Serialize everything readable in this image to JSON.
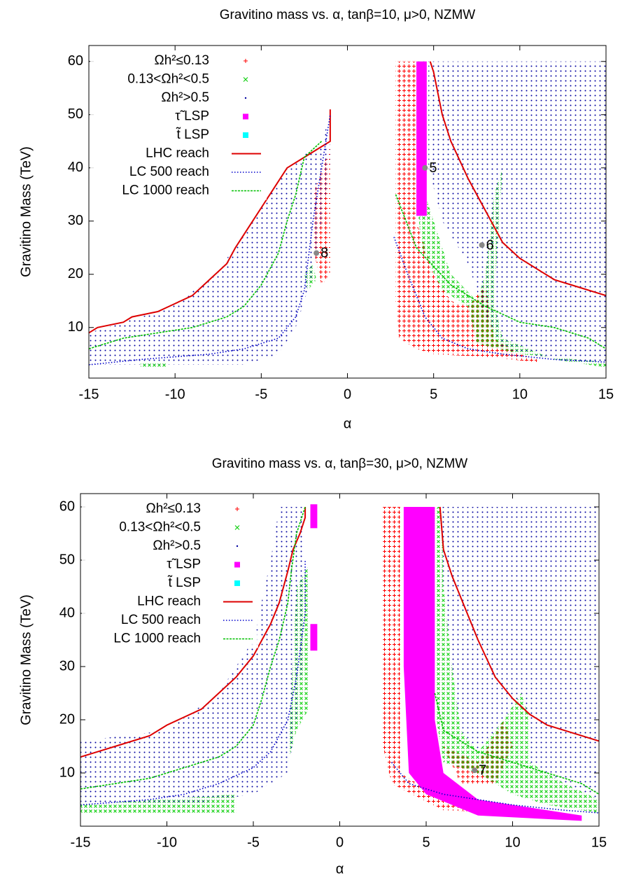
{
  "chart_data": [
    {
      "type": "scatter",
      "title": "Gravitino mass vs. α, tanβ=10, μ>0, NZMW",
      "x_label": "α",
      "y_label": "Gravitino Mass (TeV)",
      "xlim": [
        -15,
        15
      ],
      "ylim": [
        0.5,
        63
      ],
      "xticks": [
        -15,
        -10,
        -5,
        0,
        5,
        10,
        15
      ],
      "yticks": [
        10,
        20,
        30,
        40,
        50,
        60
      ],
      "legend": "upper left",
      "series": [
        {
          "name": "Ωh²≤0.13",
          "color": "#ff0000",
          "marker": "plus",
          "regions": [
            {
              "x": [
                -2,
                -1,
                -1,
                -1.5,
                -2
              ],
              "y": [
                35,
                44,
                20,
                18,
                25
              ]
            },
            {
              "x": [
                2.8,
                4,
                4,
                5,
                6,
                7,
                8,
                8.5,
                10,
                11,
                11,
                8,
                5,
                4,
                3,
                2.8
              ],
              "y": [
                60,
                60,
                30,
                20,
                15,
                14,
                18,
                8,
                5,
                4,
                3.5,
                4.5,
                5,
                6,
                8,
                15
              ]
            }
          ]
        },
        {
          "name": "0.13<Ωh²<0.5",
          "color": "#00cc00",
          "marker": "cross",
          "regions": [
            {
              "x": [
                -2.5,
                -2,
                -1.8,
                -2.3
              ],
              "y": [
                20,
                22,
                19,
                17
              ]
            },
            {
              "x": [
                -12,
                -10.5,
                -10.5,
                -12
              ],
              "y": [
                3.5,
                3.5,
                2.5,
                2.5
              ]
            },
            {
              "x": [
                4,
                4.6,
                4.5,
                5,
                6,
                7.5,
                8,
                8.5,
                9,
                8.8,
                8.5,
                9,
                12,
                15,
                15,
                10,
                7.5,
                7,
                5.5,
                4.3,
                4
              ],
              "y": [
                60,
                60,
                35,
                30,
                20,
                15,
                20,
                35,
                40,
                30,
                15,
                8,
                4,
                2.5,
                3.5,
                5,
                7,
                14,
                17,
                25,
                35
              ]
            }
          ]
        },
        {
          "name": "Ωh²>0.5",
          "color": "#0000a0",
          "marker": "dot",
          "regions": [
            {
              "x": [
                -15,
                -15,
                -13,
                -11,
                -10,
                -8,
                -6.5,
                -5.5,
                -4.5,
                -3.5,
                -2.5,
                -1.5,
                -1,
                -1,
                -1.5,
                -2,
                -3,
                -4,
                -6
              ],
              "y": [
                3,
                9,
                11,
                13,
                14.5,
                19,
                25,
                30,
                35,
                40,
                42.5,
                44,
                51,
                40,
                30,
                20,
                10,
                5,
                3
              ]
            },
            {
              "x": [
                4.7,
                15,
                15,
                12,
                9,
                8,
                7,
                5.5,
                4.7
              ],
              "y": [
                60,
                60,
                3,
                4,
                6,
                12,
                22,
                30,
                40
              ]
            }
          ]
        },
        {
          "name": "τ̃ LSP",
          "color": "#ff00ff",
          "marker": "square",
          "regions": [
            {
              "x": [
                4,
                4.6,
                4.6,
                4
              ],
              "y": [
                60,
                60,
                31,
                31
              ]
            }
          ]
        },
        {
          "name": "t̃ LSP",
          "color": "#00ffff",
          "marker": "square",
          "regions": []
        },
        {
          "name": "LHC reach",
          "color": "#dd0000",
          "marker": "line",
          "x": [
            -15,
            -14.5,
            -13,
            -12.5,
            -11,
            -10,
            -9,
            -8,
            -7,
            -6.5,
            -5.5,
            -4.5,
            -3.5,
            -2.5,
            -1.5,
            -1,
            -1,
            null,
            4.8,
            5,
            5.5,
            6,
            7,
            8,
            9,
            10,
            11,
            12,
            13,
            15
          ],
          "y": [
            9,
            10,
            11,
            12,
            13,
            14.5,
            16,
            19,
            22,
            25,
            30,
            35,
            40,
            42,
            44,
            45,
            51,
            null,
            60,
            58,
            50,
            45,
            38,
            32,
            26,
            23,
            21,
            19,
            18,
            16
          ]
        },
        {
          "name": "LC 500 reach",
          "color": "#0000cc",
          "marker": "dotted",
          "x": [
            -15,
            -12,
            -10,
            -8,
            -6,
            -4,
            -3,
            -2.5,
            -2,
            -1.5,
            -1,
            null,
            2.7,
            3.5,
            4.5,
            5.5,
            7,
            9,
            12,
            15
          ],
          "y": [
            3,
            4,
            4.5,
            5,
            6,
            8,
            12,
            17,
            30,
            40,
            50,
            null,
            27,
            20,
            12,
            8,
            6,
            5,
            4,
            3.5
          ]
        },
        {
          "name": "LC 1000 reach",
          "color": "#00c000",
          "marker": "dashed",
          "x": [
            -15,
            -13,
            -11,
            -9,
            -7,
            -6,
            -5,
            -4,
            -3.5,
            -3,
            -2.5,
            -1.5,
            null,
            2.8,
            4,
            6,
            8,
            10,
            12,
            14,
            15
          ],
          "y": [
            6,
            8,
            9,
            10,
            12,
            14,
            18,
            24,
            30,
            35,
            42,
            45,
            null,
            35,
            25,
            18,
            14,
            11,
            10,
            8,
            6
          ]
        }
      ],
      "annotations": [
        {
          "text": "8",
          "x": -1.8,
          "y": 24
        },
        {
          "text": "5",
          "x": 4.5,
          "y": 40
        },
        {
          "text": "6",
          "x": 7.8,
          "y": 25.5
        }
      ]
    },
    {
      "type": "scatter",
      "title": "Gravitino mass vs. α, tanβ=30, μ>0, NZMW",
      "x_label": "α",
      "y_label": "Gravitino Mass (TeV)",
      "xlim": [
        -15,
        15
      ],
      "ylim": [
        0,
        62.5
      ],
      "xticks": [
        -15,
        -10,
        -5,
        0,
        5,
        10,
        15
      ],
      "yticks": [
        10,
        20,
        30,
        40,
        50,
        60
      ],
      "legend": "upper left",
      "series": [
        {
          "name": "Ωh²≤0.13",
          "color": "#ff0000",
          "marker": "plus",
          "regions": [
            {
              "x": [
                2.5,
                3.5,
                3.5,
                6,
                10,
                10,
                6,
                3,
                2.5
              ],
              "y": [
                60,
                60,
                10,
                5,
                3,
                2.5,
                3,
                8,
                15
              ]
            },
            {
              "x": [
                6,
                8,
                9.5,
                10,
                9,
                7
              ],
              "y": [
                15,
                12,
                20,
                15,
                8,
                8
              ]
            }
          ]
        },
        {
          "name": "0.13<Ωh²<0.5",
          "color": "#00cc00",
          "marker": "cross",
          "regions": [
            {
              "x": [
                -2.5,
                -1.8,
                -1.8,
                -2.5,
                -3
              ],
              "y": [
                45,
                49,
                22,
                18,
                12
              ]
            },
            {
              "x": [
                -15,
                -6,
                -6,
                -15
              ],
              "y": [
                4,
                6,
                2.5,
                2.5
              ]
            },
            {
              "x": [
                5.5,
                5.9,
                6,
                6.5,
                7,
                8,
                9.5,
                10.5,
                11,
                11,
                13,
                15,
                15,
                12,
                10,
                8,
                6,
                5.6
              ],
              "y": [
                60,
                60,
                45,
                30,
                18,
                14,
                20,
                25,
                20,
                12,
                8,
                5,
                2.5,
                4,
                6,
                10,
                12,
                20
              ]
            }
          ]
        },
        {
          "name": "Ωh²>0.5",
          "color": "#0000a0",
          "marker": "dot",
          "regions": [
            {
              "x": [
                -15,
                -15,
                -10,
                -7,
                -5,
                -4,
                -3.5,
                -2,
                -2,
                -2,
                -2.5,
                -3,
                -5,
                -8
              ],
              "y": [
                4,
                16,
                18,
                25,
                35,
                50,
                60,
                60,
                55,
                35,
                20,
                10,
                6,
                4.5
              ]
            },
            {
              "x": [
                5.9,
                15,
                15,
                13,
                11,
                11,
                10.5,
                9.5,
                8,
                7,
                6.5,
                6
              ],
              "y": [
                60,
                60,
                5,
                8,
                12,
                20,
                25,
                20,
                14,
                18,
                30,
                45
              ]
            }
          ]
        },
        {
          "name": "τ̃ LSP",
          "color": "#ff00ff",
          "marker": "square",
          "regions": [
            {
              "x": [
                -1.7,
                -1.3,
                -1.3,
                -1.7
              ],
              "y": [
                60.5,
                60.5,
                56,
                56
              ]
            },
            {
              "x": [
                -1.7,
                -1.3,
                -1.3,
                -1.7
              ],
              "y": [
                38,
                38,
                33,
                33
              ]
            },
            {
              "x": [
                3.7,
                5.5,
                5.5,
                6,
                8,
                14,
                14,
                8,
                5,
                4,
                3.7
              ],
              "y": [
                60,
                60,
                20,
                10,
                5,
                2,
                1,
                2,
                6,
                10,
                30
              ]
            }
          ]
        },
        {
          "name": "t̃ LSP",
          "color": "#00ffff",
          "marker": "square",
          "regions": []
        },
        {
          "name": "LHC reach",
          "color": "#dd0000",
          "marker": "line",
          "x": [
            -15,
            -13,
            -11,
            -10,
            -8,
            -7,
            -6,
            -5,
            -4.5,
            -4,
            -3.5,
            -3,
            -2.7,
            -2.3,
            -2,
            -2,
            null,
            5.8,
            6,
            6.5,
            7,
            8,
            9,
            10,
            11,
            12,
            13,
            15
          ],
          "y": [
            13,
            15,
            17,
            19,
            22,
            25,
            28,
            32,
            35,
            38,
            42,
            48,
            52,
            55,
            58,
            60,
            null,
            60,
            52,
            47,
            43,
            35,
            28,
            24,
            21,
            19,
            18,
            16
          ]
        },
        {
          "name": "LC 500 reach",
          "color": "#0000cc",
          "marker": "dotted",
          "x": [
            -15,
            -13,
            -11,
            -9,
            -7,
            -5,
            -4,
            -3,
            -2.5,
            -2,
            -2,
            null,
            3,
            4,
            6,
            8,
            10,
            13,
            15
          ],
          "y": [
            4,
            4.5,
            5,
            6,
            8,
            11,
            14,
            20,
            28,
            40,
            50,
            null,
            12,
            8,
            6,
            5,
            4,
            3,
            2.5
          ]
        },
        {
          "name": "LC 1000 reach",
          "color": "#00c000",
          "marker": "dashed",
          "x": [
            -15,
            -13,
            -11,
            -9,
            -7,
            -6,
            -5,
            -4.5,
            -4,
            -3.5,
            -3,
            -2.8,
            -2.5,
            -2,
            null,
            5.5,
            6,
            8,
            10,
            12,
            14,
            15
          ],
          "y": [
            7,
            8,
            9,
            11,
            13,
            15,
            19,
            24,
            30,
            35,
            42,
            48,
            55,
            60,
            null,
            25,
            18,
            14,
            12,
            10,
            8,
            6
          ]
        }
      ],
      "annotations": [
        {
          "text": "7",
          "x": 7.8,
          "y": 10.5
        }
      ]
    }
  ]
}
